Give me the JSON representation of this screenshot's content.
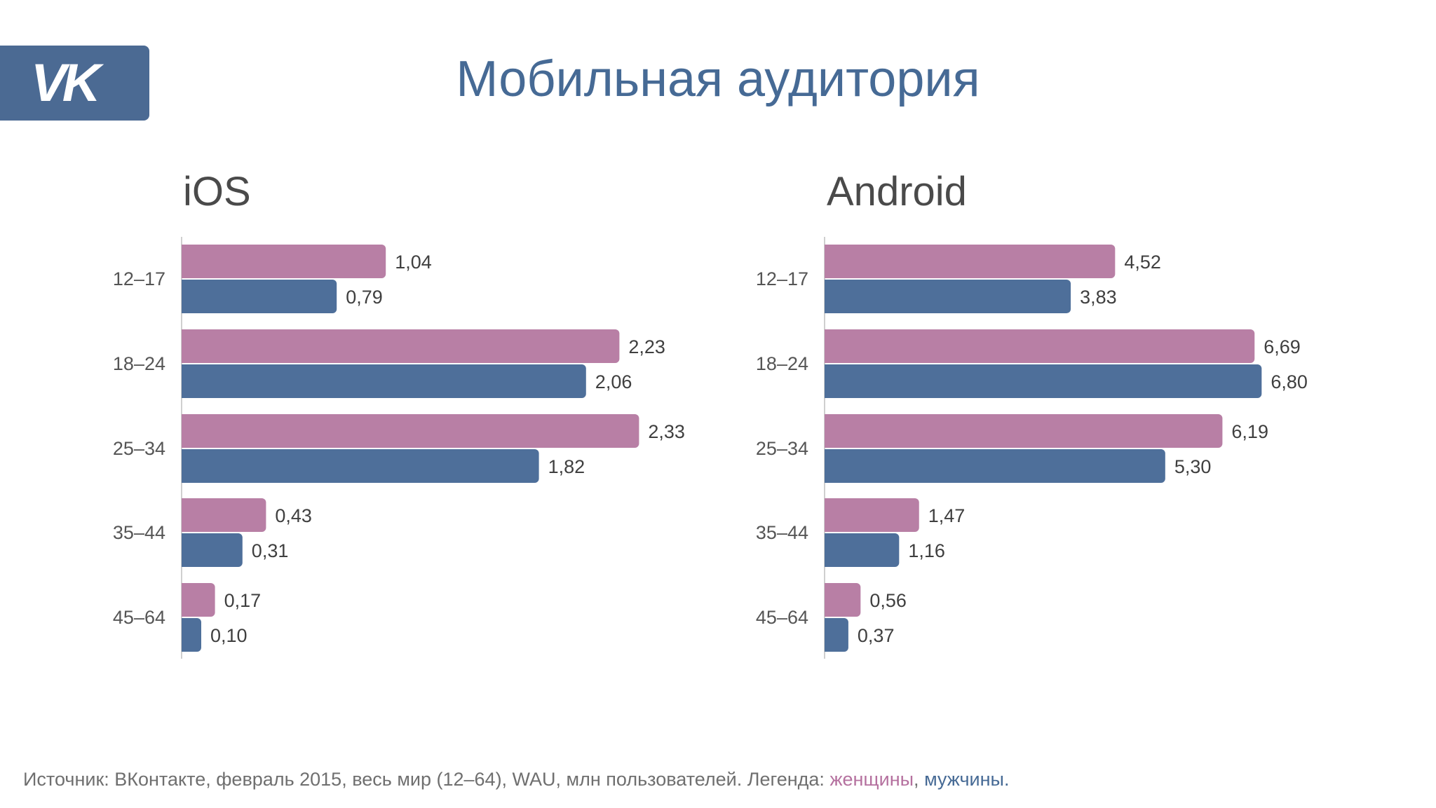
{
  "header": {
    "logo_text": "VK",
    "title": "Мобильная аудитория"
  },
  "colors": {
    "women": "#b87fa5",
    "men": "#4e6f9a",
    "brand": "#4b6a93"
  },
  "chart_data": [
    {
      "type": "bar",
      "orientation": "horizontal",
      "title": "iOS",
      "categories": [
        "12–17",
        "18–24",
        "25–34",
        "35–44",
        "45–64"
      ],
      "series": [
        {
          "name": "женщины",
          "values": [
            1.04,
            2.23,
            2.33,
            0.43,
            0.17
          ],
          "labels": [
            "1,04",
            "2,23",
            "2,33",
            "0,43",
            "0,17"
          ]
        },
        {
          "name": "мужчины",
          "values": [
            0.79,
            2.06,
            1.82,
            0.31,
            0.1
          ],
          "labels": [
            "0,79",
            "2,06",
            "1,82",
            "0,31",
            "0,10"
          ]
        }
      ],
      "xlim": [
        0,
        2.5
      ],
      "grid": false
    },
    {
      "type": "bar",
      "orientation": "horizontal",
      "title": "Android",
      "categories": [
        "12–17",
        "18–24",
        "25–34",
        "35–44",
        "45–64"
      ],
      "series": [
        {
          "name": "женщины",
          "values": [
            4.52,
            6.69,
            6.19,
            1.47,
            0.56
          ],
          "labels": [
            "4,52",
            "6,69",
            "6,19",
            "1,47",
            "0,56"
          ]
        },
        {
          "name": "мужчины",
          "values": [
            3.83,
            6.8,
            5.3,
            1.16,
            0.37
          ],
          "labels": [
            "3,83",
            "6,80",
            "5,30",
            "1,16",
            "0,37"
          ]
        }
      ],
      "xlim": [
        0,
        7.2
      ],
      "grid": false
    }
  ],
  "footer": {
    "source_text": "Источник: ВКонтакте, февраль 2015, весь мир (12–64), WAU, млн пользователей. Легенда: ",
    "legend_women": "женщины",
    "legend_sep": ", ",
    "legend_men": "мужчины",
    "legend_end": "."
  }
}
